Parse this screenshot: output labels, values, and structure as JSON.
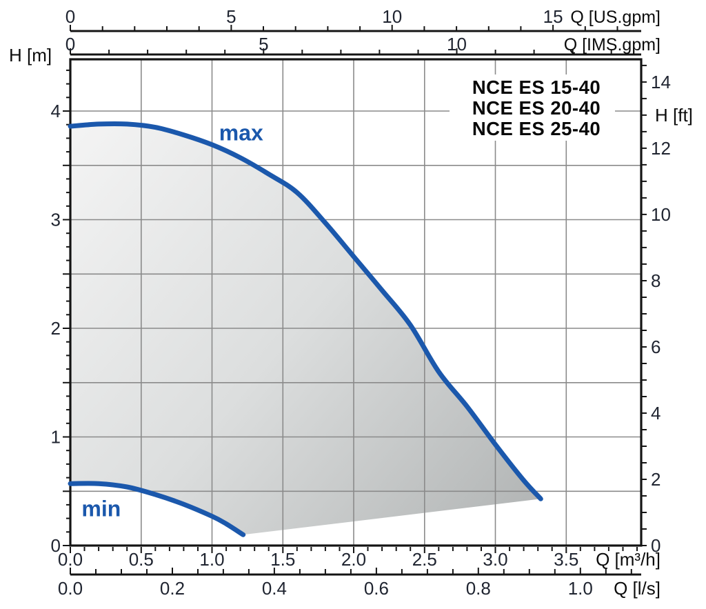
{
  "legend": {
    "lines": [
      "NCE ES 15-40",
      "NCE ES 20-40",
      "NCE ES 25-40"
    ]
  },
  "colors": {
    "curve": "#1b58ac",
    "curve_label": "#1b58ac",
    "grid": "#8a8a8a",
    "axis": "#141414",
    "tick_text": "#1f2430",
    "unit_text": "#0c0c0c",
    "legend_text": "#070707",
    "fill_light": "#f5f5f5",
    "fill_mid": "#dcdede",
    "fill_dark": "#b0b3b3",
    "background": "#ffffff"
  },
  "chart_data": {
    "type": "area",
    "x_unit_primary": "m³/h",
    "y_unit_primary": "m",
    "series": [
      {
        "name": "max",
        "points": [
          [
            0,
            3.86
          ],
          [
            0.2,
            3.88
          ],
          [
            0.4,
            3.88
          ],
          [
            0.6,
            3.85
          ],
          [
            0.8,
            3.78
          ],
          [
            1.0,
            3.69
          ],
          [
            1.2,
            3.57
          ],
          [
            1.4,
            3.42
          ],
          [
            1.6,
            3.25
          ],
          [
            1.8,
            2.97
          ],
          [
            2.0,
            2.66
          ],
          [
            2.2,
            2.35
          ],
          [
            2.4,
            2.03
          ],
          [
            2.6,
            1.6
          ],
          [
            2.8,
            1.28
          ],
          [
            3.0,
            0.93
          ],
          [
            3.2,
            0.6
          ],
          [
            3.32,
            0.43
          ]
        ]
      },
      {
        "name": "min",
        "points": [
          [
            0,
            0.57
          ],
          [
            0.2,
            0.57
          ],
          [
            0.4,
            0.54
          ],
          [
            0.6,
            0.47
          ],
          [
            0.8,
            0.38
          ],
          [
            1.0,
            0.27
          ],
          [
            1.1,
            0.2
          ],
          [
            1.22,
            0.1
          ]
        ]
      }
    ],
    "operating_region_closure": [
      [
        1.22,
        0.1
      ],
      [
        3.32,
        0.43
      ]
    ],
    "annotations": [
      {
        "text": "max",
        "q": 1.05,
        "h": 3.73
      },
      {
        "text": "min",
        "q": 0.08,
        "h": 0.27
      }
    ],
    "axes": {
      "left": {
        "label": "H [m]",
        "labeled_ticks": [
          "0",
          "1",
          "2",
          "3",
          "4"
        ],
        "major_step": 0.5,
        "minor_step": 0.125,
        "max": 4.375
      },
      "right": {
        "label": "H [ft]",
        "labeled_ticks": [
          "0",
          "2",
          "4",
          "6",
          "8",
          "10",
          "12",
          "14"
        ],
        "minor_step": 0.5,
        "m_per_unit": 0.3048,
        "max": 14.5
      },
      "bottom": {
        "label": "Q [m³/h]",
        "labeled_ticks": [
          "0.0",
          "0.5",
          "1.0",
          "1.5",
          "2.0",
          "2.5",
          "3.0",
          "3.5"
        ],
        "major_step": 0.5,
        "minor_step": 0.1,
        "max": 4.0
      },
      "bottom2": {
        "label": "Q [l/s]",
        "labeled_ticks": [
          "0.0",
          "0.2",
          "0.4",
          "0.6",
          "0.8",
          "1.0"
        ],
        "minor_step": 0.05,
        "m3h_per_unit": 3.6,
        "max": 1.1
      },
      "top": {
        "label": "Q [US.gpm]",
        "labeled_ticks": [
          "0",
          "5",
          "10",
          "15"
        ],
        "minor_step": 1,
        "m3h_per_unit": 0.227125,
        "max": 17
      },
      "top2": {
        "label": "Q [IMS.gpm]",
        "labeled_ticks": [
          "0",
          "5",
          "10"
        ],
        "minor_step": 1,
        "m3h_per_unit": 0.272766,
        "max": 14
      }
    },
    "grid": {
      "x_step": 0.5,
      "x_max": 3.5,
      "y_step": 0.5,
      "y_max": 4.0
    },
    "legend_position": "top-right"
  }
}
